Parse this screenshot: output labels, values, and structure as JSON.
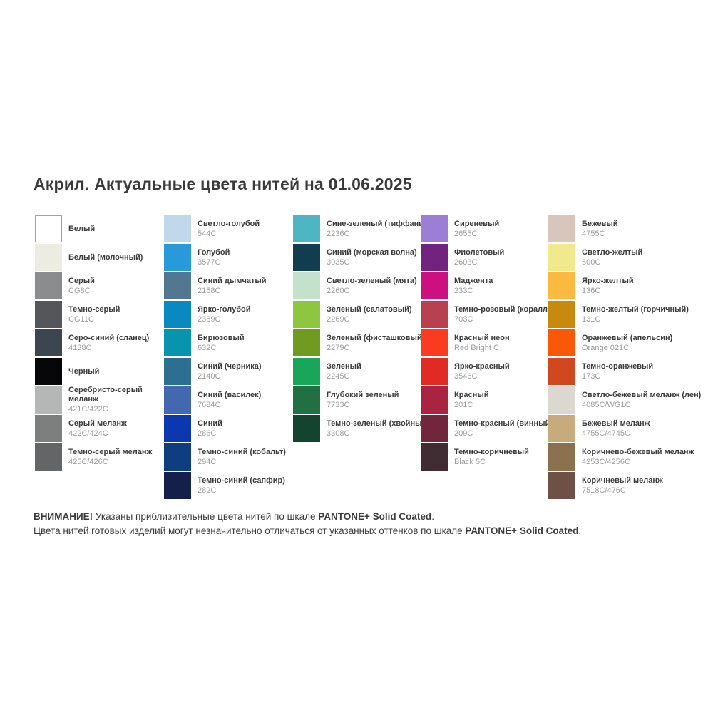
{
  "title": "Акрил. Актуальные цвета нитей на 01.06.2025",
  "palette": {
    "columns": [
      {
        "items": [
          {
            "name": "Белый",
            "code": "",
            "color": "#FFFFFF",
            "bordered": true
          },
          {
            "name": "Белый (молочный)",
            "code": "",
            "color": "#ECEDE0"
          },
          {
            "name": "Серый",
            "code": "CG8C",
            "color": "#8A8C8E"
          },
          {
            "name": "Темно-серый",
            "code": "CG11C",
            "color": "#54565A"
          },
          {
            "name": "Серо-синий (сланец)",
            "code": "4138C",
            "color": "#3B4650"
          },
          {
            "name": "Черный",
            "code": "",
            "color": "#070709"
          },
          {
            "name": "Серебристо-серый\nмеланж",
            "code": "421C/422C",
            "color": "#B5B7B6"
          },
          {
            "name": "Серый меланж",
            "code": "422C/424C",
            "color": "#7D7F7F"
          },
          {
            "name": "Темно-серый меланж",
            "code": "425C/426C",
            "color": "#636567"
          }
        ]
      },
      {
        "items": [
          {
            "name": "Светло-голубой",
            "code": "544C",
            "color": "#BFD8EB"
          },
          {
            "name": "Голубой",
            "code": "3577C",
            "color": "#2899DB"
          },
          {
            "name": "Синий дымчатый",
            "code": "2158C",
            "color": "#527790"
          },
          {
            "name": "Ярко-голубой",
            "code": "2389C",
            "color": "#0989BF"
          },
          {
            "name": "Бирюзовый",
            "code": "632C",
            "color": "#0894AE"
          },
          {
            "name": "Синий (черника)",
            "code": "2140C",
            "color": "#2D6E93"
          },
          {
            "name": "Синий (василек)",
            "code": "7684C",
            "color": "#4468B0"
          },
          {
            "name": "Синий",
            "code": "286C",
            "color": "#0B38AE"
          },
          {
            "name": "Темно-синий (кобальт)",
            "code": "294C",
            "color": "#0E3D80"
          },
          {
            "name": "Темно-синий (сапфир)",
            "code": "282C",
            "color": "#14204A"
          }
        ]
      },
      {
        "items": [
          {
            "name": "Сине-зеленый (тиффани)",
            "code": "2236C",
            "color": "#4EB5C2"
          },
          {
            "name": "Синий (морская волна)",
            "code": "3035C",
            "color": "#123C50"
          },
          {
            "name": "Светло-зеленый (мята)",
            "code": "2260C",
            "color": "#C4E1CC"
          },
          {
            "name": "Зеленый (салатовый)",
            "code": "2269C",
            "color": "#8DC63F"
          },
          {
            "name": "Зеленый (фисташковый)",
            "code": "2279C",
            "color": "#6F9C20"
          },
          {
            "name": "Зеленый",
            "code": "2245C",
            "color": "#18A65A"
          },
          {
            "name": "Глубокий зеленый",
            "code": "7733C",
            "color": "#207044"
          },
          {
            "name": "Темно-зеленый (хвойный)",
            "code": "3308C",
            "color": "#124430"
          }
        ]
      },
      {
        "items": [
          {
            "name": "Сиреневый",
            "code": "2655C",
            "color": "#9C7ED7"
          },
          {
            "name": "Фиолетовый",
            "code": "2603C",
            "color": "#71237F"
          },
          {
            "name": "Маджента",
            "code": "233C",
            "color": "#CE0F80"
          },
          {
            "name": "Темно-розовый (коралл)",
            "code": "703C",
            "color": "#B9414F"
          },
          {
            "name": "Красный неон",
            "code": "Red Bright C",
            "color": "#FA3B20"
          },
          {
            "name": "Ярко-красный",
            "code": "3546C",
            "color": "#E02A23"
          },
          {
            "name": "Красный",
            "code": "201C",
            "color": "#A92441"
          },
          {
            "name": "Темно-красный (винный)",
            "code": "209C",
            "color": "#72263E"
          },
          {
            "name": "Темно-коричневый",
            "code": "Black 5C",
            "color": "#402C33"
          }
        ]
      },
      {
        "items": [
          {
            "name": "Бежевый",
            "code": "4755C",
            "color": "#D8C5BC"
          },
          {
            "name": "Светло-желтый",
            "code": "600C",
            "color": "#F2E98E"
          },
          {
            "name": "Ярко-желтый",
            "code": "136C",
            "color": "#FBB93F"
          },
          {
            "name": "Темно-желтый (горчичный)",
            "code": "131C",
            "color": "#C8890F"
          },
          {
            "name": "Оранжевый (апельсин)",
            "code": "Orange 021C",
            "color": "#F85808"
          },
          {
            "name": "Темно-оранжевый",
            "code": "173C",
            "color": "#D14720"
          },
          {
            "name": "Светло-бежевый меланж (лен)",
            "code": "4085C/WG1C",
            "color": "#DAD8D1"
          },
          {
            "name": "Бежевый меланж",
            "code": "4755C/4745C",
            "color": "#C8AB7D"
          },
          {
            "name": "Коричнево-бежевый меланж",
            "code": "4253C/4256C",
            "color": "#8B7150"
          },
          {
            "name": "Коричневый меланж",
            "code": "7518C/476C",
            "color": "#6F5046"
          }
        ]
      }
    ]
  },
  "footer": {
    "lines": [
      {
        "segments": [
          {
            "text": "ВНИМАНИЕ!",
            "bold": true
          },
          {
            "text": " Указаны приблизительные цвета нитей по шкале ",
            "bold": false
          },
          {
            "text": "PANTONE+ Solid Coated",
            "bold": true
          },
          {
            "text": ".",
            "bold": false
          }
        ]
      },
      {
        "segments": [
          {
            "text": "Цвета нитей готовых изделий могут незначительно отличаться от указанных оттенков по шкале ",
            "bold": false
          },
          {
            "text": "PANTONE+ Solid Coated",
            "bold": true
          },
          {
            "text": ".",
            "bold": false
          }
        ]
      }
    ]
  }
}
